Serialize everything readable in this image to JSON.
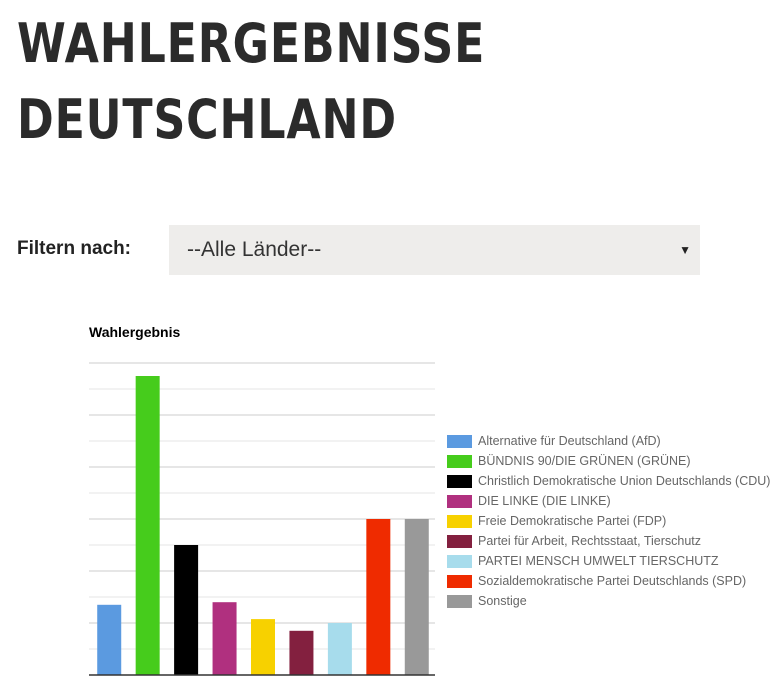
{
  "page": {
    "title_line1": "WAHLERGEBNISSE",
    "title_line2": "DEUTSCHLAND"
  },
  "filter": {
    "label": "Filtern nach:",
    "selected": "--Alle Länder--"
  },
  "chart_data": {
    "type": "bar",
    "title": "Wahlergebnis",
    "xlabel": "",
    "ylabel": "",
    "ylim": [
      0,
      12
    ],
    "grid": true,
    "legend_position": "right",
    "series": [
      {
        "name": "Alternative für Deutschland (AfD)",
        "value": 2.7,
        "color": "#5b9ae0"
      },
      {
        "name": "BÜNDNIS 90/DIE GRÜNEN (GRÜNE)",
        "value": 11.5,
        "color": "#46cc1c"
      },
      {
        "name": "Christlich Demokratische Union Deutschlands (CDU)",
        "value": 5.0,
        "color": "#000000"
      },
      {
        "name": "DIE LINKE (DIE LINKE)",
        "value": 2.8,
        "color": "#b0307f"
      },
      {
        "name": "Freie Demokratische Partei (FDP)",
        "value": 2.15,
        "color": "#f7d100"
      },
      {
        "name": "Partei für Arbeit, Rechtsstaat, Tierschutz",
        "value": 1.7,
        "color": "#83203f"
      },
      {
        "name": "PARTEI MENSCH UMWELT TIERSCHUTZ",
        "value": 2.0,
        "color": "#a7dcec"
      },
      {
        "name": "Sozialdemokratische Partei Deutschlands (SPD)",
        "value": 6.0,
        "color": "#ef2b00"
      },
      {
        "name": "Sonstige",
        "value": 6.0,
        "color": "#999999"
      }
    ]
  }
}
